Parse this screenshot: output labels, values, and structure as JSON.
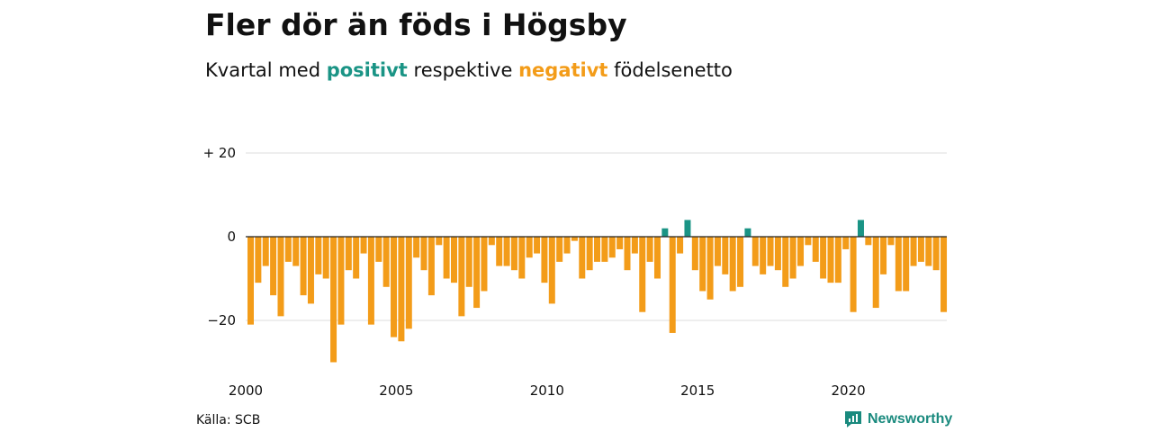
{
  "header": {
    "title": "Fler dör än föds i Högsby",
    "subtitle_prefix": "Kvartal med",
    "subtitle_positive": "positivt",
    "subtitle_middle": "respektive",
    "subtitle_negative": "negativt",
    "subtitle_suffix": "födelsenetto"
  },
  "colors": {
    "positive": "#1a9485",
    "negative": "#f39c19",
    "grid": "#dddddd"
  },
  "footer": {
    "source": "Källa: SCB",
    "brand": "Newsworthy",
    "brand_icon": "newsworthy-logo-icon"
  },
  "chart_data": {
    "type": "bar",
    "title": "Fler dör än föds i Högsby",
    "subtitle": "Kvartal med positivt respektive negativt födelsenetto",
    "xlabel": "",
    "ylabel": "",
    "x_start": "2000 Q1",
    "x_ticks": [
      "2000",
      "2005",
      "2010",
      "2015",
      "2020"
    ],
    "y_ticks": [
      {
        "value": 20,
        "label": "+ 20"
      },
      {
        "value": 0,
        "label": "0"
      },
      {
        "value": -20,
        "label": "−20"
      }
    ],
    "ylim": [
      -30,
      20
    ],
    "grid": true,
    "values": [
      -21,
      -11,
      -7,
      -14,
      -19,
      -6,
      -7,
      -14,
      -16,
      -9,
      -10,
      -30,
      -21,
      -8,
      -10,
      -4,
      -21,
      -6,
      -12,
      -24,
      -25,
      -22,
      -5,
      -8,
      -14,
      -2,
      -10,
      -11,
      -19,
      -12,
      -17,
      -13,
      -2,
      -7,
      -7,
      -8,
      -10,
      -5,
      -4,
      -11,
      -16,
      -6,
      -4,
      -1,
      -10,
      -8,
      -6,
      -6,
      -5,
      -3,
      -8,
      -4,
      -18,
      -6,
      -10,
      2,
      -23,
      -4,
      4,
      -8,
      -13,
      -15,
      -7,
      -9,
      -13,
      -12,
      2,
      -7,
      -9,
      -7,
      -8,
      -12,
      -10,
      -7,
      -2,
      -6,
      -10,
      -11,
      -11,
      -3,
      -18,
      4,
      -2,
      -17,
      -9,
      -2,
      -13,
      -13,
      -7,
      -6,
      -7,
      -8,
      -18
    ]
  }
}
